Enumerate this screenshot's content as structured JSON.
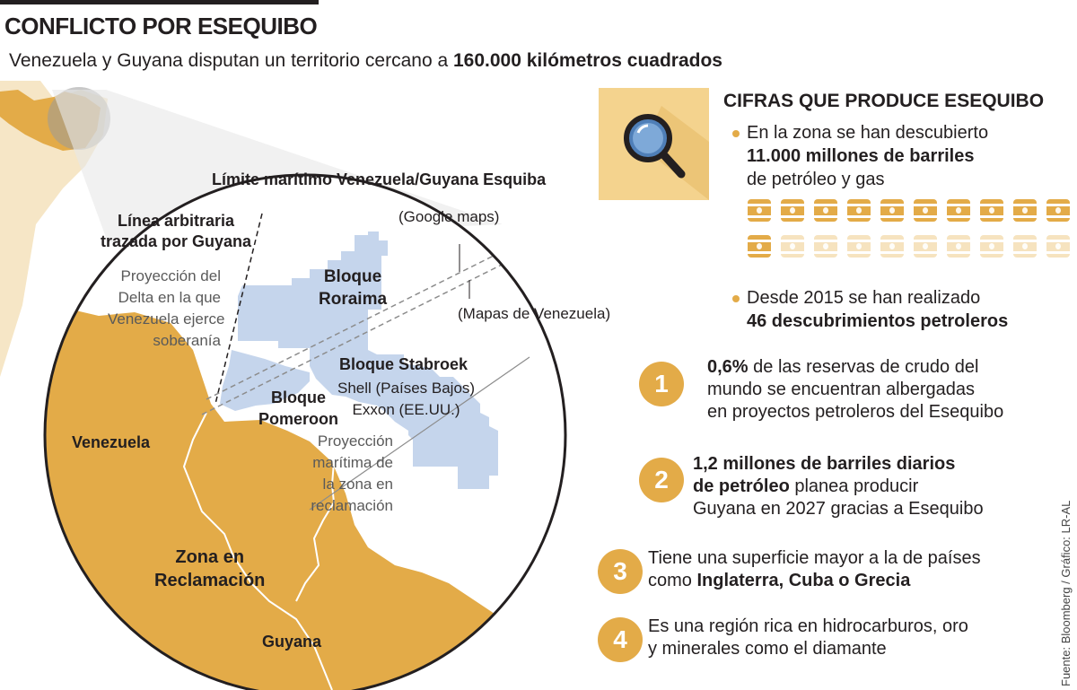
{
  "title": "CONFLICTO POR ESEQUIBO",
  "subtitle": {
    "prefix": "Venezuela y Guyana disputan un territorio cercano a ",
    "highlight": "160.000 kilómetros cuadrados"
  },
  "map_labels": {
    "maritime_limit": "Límite marítimo Venezuela/Guyana Esquiba",
    "google_maps": "(Google maps)",
    "venezuela_maps": "(Mapas de Venezuela)",
    "arbitrary_line": [
      "Línea arbitraria",
      "trazada por Guyana"
    ],
    "delta_projection": [
      "Proyección del",
      "Delta en la que",
      "Venezuela ejerce",
      "soberanía"
    ],
    "bloque_roraima": [
      "Bloque",
      "Roraima"
    ],
    "bloque_stabroek": "Bloque Stabroek",
    "stabroek_companies": [
      "Shell (Países Bajos)",
      "Exxon (EE.UU.)"
    ],
    "bloque_pomeroon": [
      "Bloque",
      "Pomeroon"
    ],
    "maritime_projection": [
      "Proyección",
      "marítima de",
      "la zona en",
      "reclamación"
    ],
    "venezuela": "Venezuela",
    "zona": [
      "Zona en",
      "Reclamación"
    ],
    "guyana": "Guyana"
  },
  "facts": {
    "title": "CIFRAS QUE PRODUCE ESEQUIBO",
    "icon": "magnifier-icon",
    "fact1_line1": "En la zona se han descubierto",
    "fact1_line2": "11.000 millones de barriles",
    "fact1_line3": "de petróleo y gas",
    "barrels_total": 20,
    "barrels_filled": 11,
    "fact2_line1": "Desde 2015 se han realizado",
    "fact2_line2": "46 descubrimientos petroleros"
  },
  "numbered": [
    {
      "n": "1",
      "bold": "0,6%",
      "line1_rest": " de las reservas de crudo del",
      "line2": "mundo se encuentran albergadas",
      "line3": "en proyectos petroleros del Esequibo"
    },
    {
      "n": "2",
      "line1": "1,2 millones de barriles diarios",
      "line2_bold": "de petróleo",
      "line2_rest": " planea producir",
      "line3": "Guyana en 2027 gracias a Esequibo"
    },
    {
      "n": "3",
      "line1": "Tiene una superficie mayor a la de países",
      "line2_prefix": "como ",
      "line2_bold": "Inglaterra, Cuba o Grecia"
    },
    {
      "n": "4",
      "line1": "Es una región rica en hidrocarburos, oro",
      "line2": "y minerales como el diamante"
    }
  ],
  "colors": {
    "land": "#e3ab48",
    "blocks": "#c5d5ec",
    "circle_stroke": "#231f20",
    "barrel_filled": "#e3ab48",
    "barrel_empty": "#f6e3bf"
  },
  "source": "Fuente: Bloomberg / Gráfico: LR-AL"
}
